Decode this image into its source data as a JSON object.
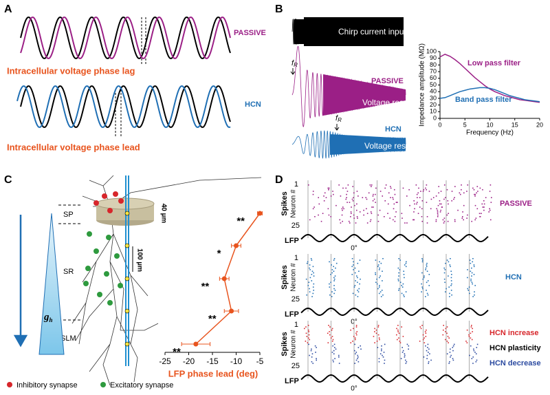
{
  "panels": {
    "a": {
      "label": "A",
      "passive": "PASSIVE",
      "phase_lag": "Intracellular voltage phase lag",
      "hcn": "HCN",
      "phase_lead": "Intracellular voltage phase lead"
    },
    "b": {
      "label": "B",
      "chirp_input": "Chirp current input",
      "passive": "PASSIVE",
      "passive_response": "Voltage response",
      "hcn": "HCN",
      "hcn_response": "Voltage response",
      "fr_symbol": "f",
      "fr_subscript": "R"
    },
    "c": {
      "label": "C",
      "layers": [
        "SP",
        "SR",
        "SLM"
      ],
      "scale_40": "40 µm",
      "scale_100": "100 µm",
      "gh_symbol": "g",
      "gh_subscript": "h",
      "legend": [
        "Inhibitory synapse",
        "Excitatory synapse"
      ]
    },
    "d": {
      "label": "D",
      "groups": [
        {
          "spikes": "Spikes",
          "neuron": "Neuron #",
          "first": "1",
          "last": "25",
          "lfp": "LFP",
          "phase": "0°",
          "labels": [
            "PASSIVE"
          ],
          "label_colors": [
            "#9b1f86"
          ]
        },
        {
          "spikes": "Spikes",
          "neuron": "Neuron #",
          "first": "1",
          "last": "25",
          "lfp": "LFP",
          "phase": "0°",
          "labels": [
            "HCN"
          ],
          "label_colors": [
            "#1f6fb4"
          ]
        },
        {
          "spikes": "Spikes",
          "neuron": "Neuron #",
          "first": "1",
          "last": "25",
          "lfp": "LFP",
          "phase": "0°",
          "labels": [
            "HCN increase",
            "HCN plasticity",
            "HCN decrease"
          ],
          "label_colors": [
            "#d7262b",
            "#000000",
            "#2b4aa0"
          ]
        }
      ]
    }
  },
  "chart_data": [
    {
      "type": "line",
      "xlabel": "Frequency (Hz)",
      "ylabel": "Impedance amplitude (MΩ)",
      "x": [
        0,
        1,
        2,
        3,
        4,
        5,
        6,
        7,
        8,
        9,
        10,
        11,
        12,
        13,
        14,
        15,
        16,
        17,
        18,
        19,
        20
      ],
      "xlim": [
        0,
        20
      ],
      "xticks": [
        0,
        5,
        10,
        15,
        20
      ],
      "ylim": [
        0,
        100
      ],
      "yticks": [
        0,
        10,
        20,
        30,
        40,
        50,
        60,
        70,
        80,
        90,
        100
      ],
      "series": [
        {
          "name": "Low pass filter",
          "color": "#9b1f86",
          "values": [
            92,
            96,
            93,
            88,
            82,
            75,
            68,
            61,
            55,
            49,
            44,
            40,
            37,
            34,
            32,
            30,
            28,
            27,
            26,
            25,
            24
          ]
        },
        {
          "name": "Band pass filter",
          "color": "#1f6fb4",
          "values": [
            30,
            31,
            34,
            37,
            40,
            42,
            44,
            45,
            46,
            46,
            45,
            43,
            40,
            37,
            34,
            32,
            30,
            28,
            27,
            26,
            25
          ]
        }
      ]
    },
    {
      "type": "errorbar",
      "xlabel": "LFP phase lead (deg)",
      "categories": [
        null,
        null,
        null,
        null,
        null
      ],
      "values": [
        -5,
        -10,
        -12.5,
        -11,
        -18.5
      ],
      "errors": [
        0.5,
        1,
        1,
        1.5,
        3
      ],
      "significance": [
        "**",
        "*",
        "**",
        "**",
        "**"
      ],
      "xlim": [
        -25,
        -5
      ],
      "xticks": [
        -25,
        -20,
        -15,
        -10,
        -5
      ],
      "color": "#e8541e"
    }
  ]
}
